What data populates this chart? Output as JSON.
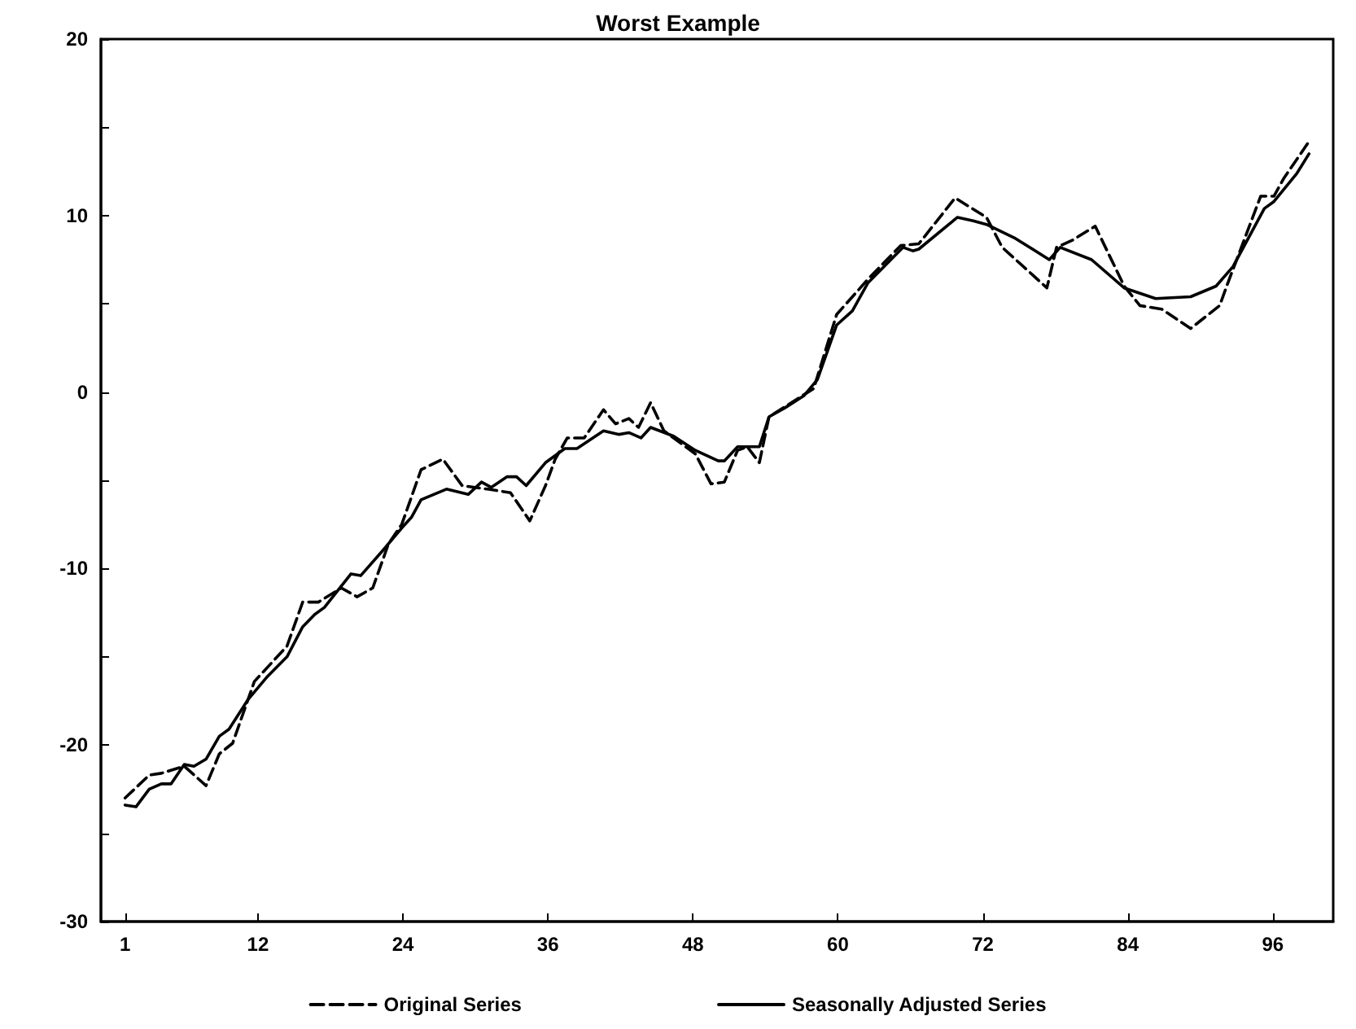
{
  "chart_data": {
    "type": "line",
    "title": "Worst Example",
    "xlim": [
      -1,
      101
    ],
    "xticks": [
      1,
      12,
      24,
      36,
      48,
      60,
      72,
      84,
      96
    ],
    "ylim": [
      -30,
      20
    ],
    "yticks": [
      -30,
      {
        "value": -25,
        "label": null
      },
      -20,
      {
        "value": -15,
        "label": null
      },
      -10,
      {
        "value": -5,
        "label": null
      },
      0,
      {
        "value": 5,
        "label": null
      },
      10,
      {
        "value": 15,
        "label": null
      },
      20
    ],
    "grid": false,
    "legend": "bottom",
    "marker": "none",
    "series": [
      {
        "name": "Original Series",
        "color": "#000000",
        "line_style": "dashed",
        "x": [
          1,
          3.0,
          4.0,
          5.9,
          7.7,
          8.8,
          9.9,
          11.7,
          14.4,
          15.7,
          17.0,
          18.9,
          20.2,
          21.5,
          22.8,
          23.9,
          25.5,
          27.3,
          28.9,
          31.0,
          32.9,
          34.5,
          35.8,
          36.6,
          37.6,
          39.0,
          40.6,
          41.6,
          42.7,
          43.5,
          44.5,
          45.6,
          48.2,
          49.5,
          50.6,
          51.7,
          52.5,
          53.5,
          54.3,
          58.0,
          59.9,
          62.5,
          65.2,
          66.7,
          69.7,
          72.3,
          73.6,
          77.3,
          78.1,
          79.4,
          81.3,
          83.7,
          85.0,
          86.8,
          89.2,
          91.6,
          92.4,
          95.0,
          96.1,
          96.9,
          99.0
        ],
        "values": [
          -23.0,
          -21.7,
          -21.6,
          -21.2,
          -22.3,
          -20.5,
          -19.9,
          -16.4,
          -14.4,
          -11.9,
          -11.9,
          -11.1,
          -11.6,
          -11.1,
          -8.6,
          -7.5,
          -4.4,
          -3.8,
          -5.3,
          -5.5,
          -5.7,
          -7.3,
          -5.3,
          -3.8,
          -2.6,
          -2.6,
          -1.0,
          -1.8,
          -1.5,
          -2.0,
          -0.6,
          -2.2,
          -3.5,
          -5.2,
          -5.1,
          -3.3,
          -3.1,
          -4.0,
          -1.4,
          0.2,
          4.4,
          6.4,
          8.3,
          8.4,
          11.0,
          9.9,
          8.2,
          5.9,
          8.2,
          8.6,
          9.4,
          6.0,
          4.9,
          4.7,
          3.6,
          4.9,
          6.4,
          11.1,
          11.1,
          12.1,
          14.2
        ]
      },
      {
        "name": "Seasonally Adjusted Series",
        "color": "#000000",
        "line_style": "solid",
        "x": [
          1,
          1.9,
          3,
          4,
          4.8,
          5.9,
          6.7,
          7.7,
          8.8,
          9.6,
          11.2,
          12.8,
          14.4,
          15.7,
          16.7,
          17.5,
          19.7,
          20.5,
          22.3,
          23.9,
          24.7,
          25.5,
          27.6,
          29.4,
          30.5,
          31.3,
          32.6,
          33.4,
          34.2,
          35.8,
          37.4,
          38.4,
          40.6,
          41.9,
          42.7,
          43.7,
          44.5,
          46.4,
          48.2,
          50.1,
          50.6,
          51.7,
          53.5,
          54.3,
          55.6,
          57.2,
          58.3,
          59.9,
          61.2,
          62.5,
          64.1,
          65.4,
          66.2,
          66.7,
          69.9,
          71.2,
          72.3,
          74.7,
          77.5,
          78.4,
          81.0,
          83.7,
          86.3,
          89.2,
          91.3,
          92.7,
          95.3,
          96.1,
          98.0,
          99.0
        ],
        "values": [
          -23.4,
          -23.5,
          -22.5,
          -22.2,
          -22.2,
          -21.1,
          -21.2,
          -20.8,
          -19.5,
          -19.1,
          -17.4,
          -16.1,
          -15.0,
          -13.3,
          -12.6,
          -12.2,
          -10.3,
          -10.4,
          -9.0,
          -7.7,
          -7.1,
          -6.1,
          -5.5,
          -5.8,
          -5.1,
          -5.4,
          -4.8,
          -4.8,
          -5.3,
          -4.0,
          -3.2,
          -3.2,
          -2.2,
          -2.4,
          -2.3,
          -2.6,
          -2.0,
          -2.5,
          -3.3,
          -3.9,
          -3.9,
          -3.1,
          -3.1,
          -1.4,
          -0.9,
          -0.2,
          0.7,
          3.8,
          4.6,
          6.2,
          7.3,
          8.2,
          8.0,
          8.1,
          9.9,
          9.7,
          9.5,
          8.7,
          7.5,
          8.2,
          7.5,
          5.9,
          5.3,
          5.4,
          6.0,
          7.1,
          10.4,
          10.8,
          12.4,
          13.5
        ]
      }
    ]
  }
}
